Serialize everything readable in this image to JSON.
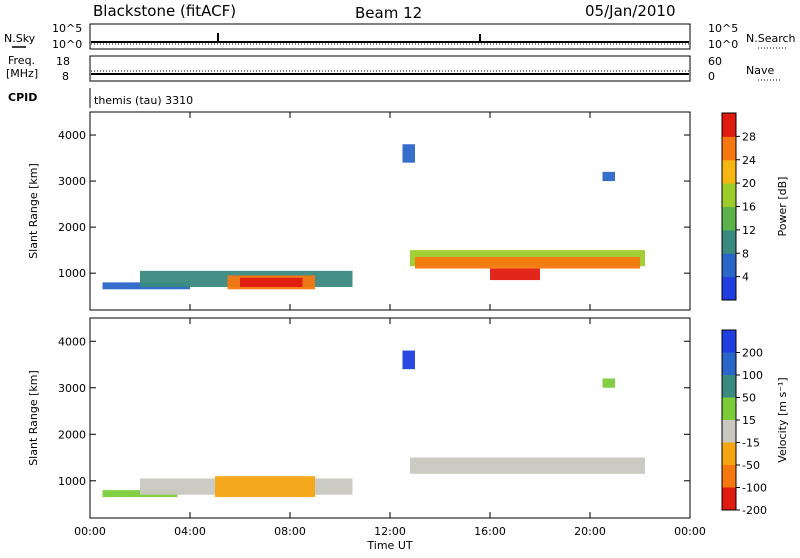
{
  "header": {
    "station": "Blackstone (fitACF)",
    "beam": "Beam 12",
    "date": "05/Jan/2010"
  },
  "top_panels": {
    "nsky_label": "N.Sky",
    "nsky_ticks": [
      "10^5",
      "10^0"
    ],
    "nsearch_label": "N.Search",
    "nsearch_ticks": [
      "10^5",
      "10^0"
    ],
    "freq_label_1": "Freq.",
    "freq_label_2": "[MHz]",
    "freq_ticks": [
      "18",
      "8"
    ],
    "nave_label": "Nave",
    "nave_ticks": [
      "60",
      "0"
    ],
    "cpid_label": "CPID",
    "cpid_text": "themis (tau) 3310"
  },
  "chart_data": [
    {
      "type": "heatmap",
      "name": "power-panel",
      "ylabel": "Slant Range [km]",
      "y_ticks": [
        1000,
        2000,
        3000,
        4000
      ],
      "ylim": [
        200,
        4500
      ],
      "x_ticks": [
        "00:00",
        "04:00",
        "08:00",
        "12:00",
        "16:00",
        "20:00",
        "00:00"
      ],
      "xlim_hours": [
        0,
        24
      ],
      "colorbar": {
        "label": "Power [dB]",
        "ticks": [
          "4",
          "8",
          "12",
          "16",
          "20",
          "24",
          "28"
        ],
        "colors": [
          "#1f3fe0",
          "#2a66c8",
          "#3a8a80",
          "#5ab24a",
          "#9ccc2a",
          "#f5b512",
          "#f5780f",
          "#e01a10"
        ]
      },
      "regions": [
        {
          "t0": 0.5,
          "t1": 4.0,
          "r0": 650,
          "r1": 800,
          "level": 1
        },
        {
          "t0": 2.0,
          "t1": 10.5,
          "r0": 700,
          "r1": 1050,
          "level": 2
        },
        {
          "t0": 5.5,
          "t1": 9.0,
          "r0": 650,
          "r1": 950,
          "level": 6
        },
        {
          "t0": 6.0,
          "t1": 8.5,
          "r0": 700,
          "r1": 900,
          "level": 7
        },
        {
          "t0": 12.8,
          "t1": 22.2,
          "r0": 1150,
          "r1": 1500,
          "level": 4
        },
        {
          "t0": 13.0,
          "t1": 22.0,
          "r0": 1100,
          "r1": 1350,
          "level": 6
        },
        {
          "t0": 16.0,
          "t1": 18.0,
          "r0": 850,
          "r1": 1100,
          "level": 7
        },
        {
          "t0": 12.5,
          "t1": 13.0,
          "r0": 3400,
          "r1": 3800,
          "level": 1
        },
        {
          "t0": 20.5,
          "t1": 21.0,
          "r0": 3000,
          "r1": 3200,
          "level": 1
        }
      ]
    },
    {
      "type": "heatmap",
      "name": "velocity-panel",
      "ylabel": "Slant Range [km]",
      "y_ticks": [
        1000,
        2000,
        3000,
        4000
      ],
      "ylim": [
        200,
        4500
      ],
      "x_ticks": [
        "00:00",
        "04:00",
        "08:00",
        "12:00",
        "16:00",
        "20:00",
        "00:00"
      ],
      "xlim_hours": [
        0,
        24
      ],
      "xlabel": "Time UT",
      "colorbar": {
        "label": "Velocity [m s⁻¹]",
        "ticks": [
          "200",
          "100",
          "50",
          "15",
          "-15",
          "-50",
          "-100",
          "-200"
        ],
        "colors": [
          "#1f3fe0",
          "#2a66c8",
          "#3a8a80",
          "#7ccc3a",
          "#c8c8c0",
          "#f5a512",
          "#f5780f",
          "#e01a10"
        ]
      },
      "regions": [
        {
          "t0": 0.5,
          "t1": 3.5,
          "r0": 650,
          "r1": 800,
          "level": 3
        },
        {
          "t0": 2.0,
          "t1": 10.5,
          "r0": 700,
          "r1": 1050,
          "level": 4
        },
        {
          "t0": 5.0,
          "t1": 9.0,
          "r0": 650,
          "r1": 1100,
          "level": 5
        },
        {
          "t0": 12.8,
          "t1": 22.2,
          "r0": 1150,
          "r1": 1500,
          "level": 4
        },
        {
          "t0": 12.5,
          "t1": 13.0,
          "r0": 3400,
          "r1": 3800,
          "level": 0
        },
        {
          "t0": 20.5,
          "t1": 21.0,
          "r0": 3000,
          "r1": 3200,
          "level": 3
        }
      ]
    }
  ]
}
